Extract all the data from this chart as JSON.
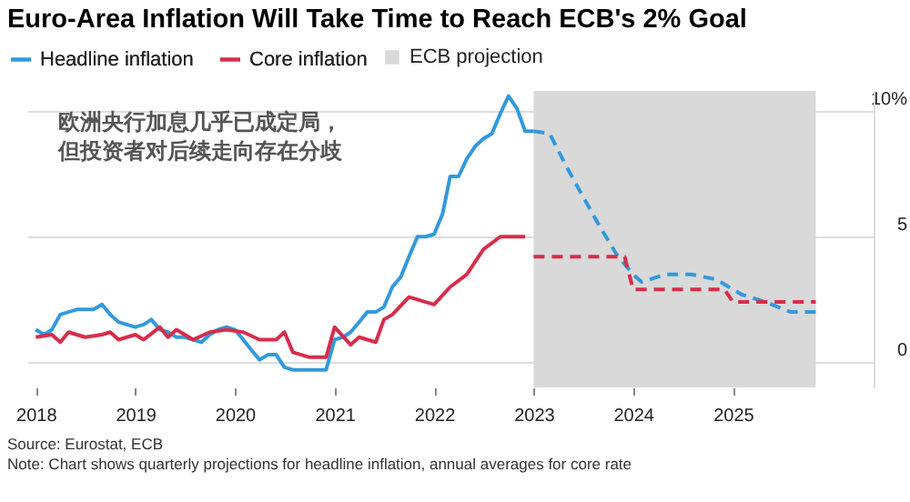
{
  "chart_data": {
    "type": "line",
    "title": "Euro-Area Inflation Will Take Time to Reach ECB's 2% Goal",
    "xlim": [
      "2017-12",
      "2026-06"
    ],
    "xticks": [
      "2018",
      "2019",
      "2020",
      "2021",
      "2022",
      "2023",
      "2024",
      "2025"
    ],
    "ylim": [
      -1,
      10.8
    ],
    "yticks": [
      0,
      5,
      {
        "value": 10,
        "label": "10%"
      }
    ],
    "grid": "y",
    "legend": "top left",
    "series": [
      {
        "name": "Headline inflation",
        "color": "#3399dd",
        "line_style": "solid",
        "x": [
          "2018-01",
          "2018-02",
          "2018-03",
          "2018-04",
          "2018-05",
          "2018-06",
          "2018-07",
          "2018-08",
          "2018-09",
          "2018-10",
          "2018-11",
          "2018-12",
          "2019-01",
          "2019-02",
          "2019-03",
          "2019-04",
          "2019-05",
          "2019-06",
          "2019-07",
          "2019-08",
          "2019-09",
          "2019-10",
          "2019-11",
          "2019-12",
          "2020-01",
          "2020-02",
          "2020-03",
          "2020-04",
          "2020-05",
          "2020-06",
          "2020-07",
          "2020-08",
          "2020-09",
          "2020-10",
          "2020-11",
          "2020-12",
          "2021-01",
          "2021-02",
          "2021-03",
          "2021-04",
          "2021-05",
          "2021-06",
          "2021-07",
          "2021-08",
          "2021-09",
          "2021-10",
          "2021-11",
          "2021-12",
          "2022-01",
          "2022-02",
          "2022-03",
          "2022-04",
          "2022-05",
          "2022-06",
          "2022-07",
          "2022-08",
          "2022-09",
          "2022-10",
          "2022-11",
          "2022-12",
          "2023-01"
        ],
        "values": [
          1.3,
          1.1,
          1.3,
          1.9,
          2.0,
          2.1,
          2.1,
          2.1,
          2.3,
          1.9,
          1.6,
          1.5,
          1.4,
          1.5,
          1.7,
          1.3,
          1.2,
          1.0,
          1.0,
          0.9,
          0.8,
          1.1,
          1.3,
          1.4,
          1.3,
          0.9,
          0.5,
          0.1,
          0.3,
          0.3,
          -0.2,
          -0.3,
          -0.3,
          -0.3,
          -0.3,
          -0.3,
          0.9,
          1.0,
          1.2,
          1.6,
          2.0,
          2.0,
          2.2,
          3.0,
          3.4,
          4.2,
          5.0,
          5.0,
          5.1,
          5.9,
          7.4,
          7.4,
          8.1,
          8.6,
          8.9,
          9.1,
          9.9,
          10.6,
          10.1,
          9.2,
          9.2
        ]
      },
      {
        "name": "Core inflation",
        "color": "#d62d4a",
        "line_style": "solid",
        "x": [
          "2018-01",
          "2018-03",
          "2018-04",
          "2018-05",
          "2018-07",
          "2018-09",
          "2018-10",
          "2018-11",
          "2019-01",
          "2019-02",
          "2019-04",
          "2019-05",
          "2019-06",
          "2019-08",
          "2019-10",
          "2019-12",
          "2020-02",
          "2020-04",
          "2020-06",
          "2020-07",
          "2020-08",
          "2020-10",
          "2020-12",
          "2021-01",
          "2021-03",
          "2021-04",
          "2021-06",
          "2021-07",
          "2021-08",
          "2021-10",
          "2021-11",
          "2022-01",
          "2022-03",
          "2022-05",
          "2022-07",
          "2022-09",
          "2022-11",
          "2022-12"
        ],
        "values": [
          1.0,
          1.1,
          0.8,
          1.2,
          1.0,
          1.1,
          1.2,
          0.9,
          1.1,
          0.9,
          1.4,
          1.0,
          1.3,
          0.9,
          1.2,
          1.3,
          1.2,
          0.9,
          0.9,
          1.2,
          0.4,
          0.2,
          0.2,
          1.4,
          0.7,
          1.0,
          0.8,
          1.7,
          1.9,
          2.6,
          2.5,
          2.3,
          3.0,
          3.5,
          4.5,
          5.0,
          5.0,
          5.0
        ]
      },
      {
        "color": "#3399dd",
        "line_style": "dashed",
        "x": [
          "2023-01",
          "2023-03",
          "2023-05",
          "2023-07",
          "2023-09",
          "2023-11",
          "2024-01",
          "2024-02",
          "2024-05",
          "2024-08",
          "2024-11",
          "2025-02",
          "2025-05",
          "2025-08",
          "2025-11"
        ],
        "values": [
          9.2,
          9.1,
          7.8,
          6.6,
          5.4,
          4.3,
          3.5,
          3.2,
          3.5,
          3.5,
          3.3,
          2.7,
          2.4,
          2.0,
          2.0
        ]
      },
      {
        "color": "#d62d4a",
        "line_style": "dashed",
        "x": [
          "2023-01",
          "2023-12",
          "2024-01",
          "2024-12",
          "2025-01",
          "2025-11"
        ],
        "values": [
          4.2,
          4.2,
          2.9,
          2.9,
          2.4,
          2.4
        ]
      }
    ],
    "bands": [
      {
        "axis": "x",
        "from": "2023-01",
        "to": "2025-11",
        "label": "ECB projection",
        "color": "#d9d9d9"
      }
    ],
    "annotations": [
      "欧洲央行加息几乎已成定局，但投资者对后续走向存在分歧",
      "Source: Eurostat, ECB",
      "Note: Chart shows quarterly projections for headline inflation, annual averages for core rate"
    ]
  }
}
